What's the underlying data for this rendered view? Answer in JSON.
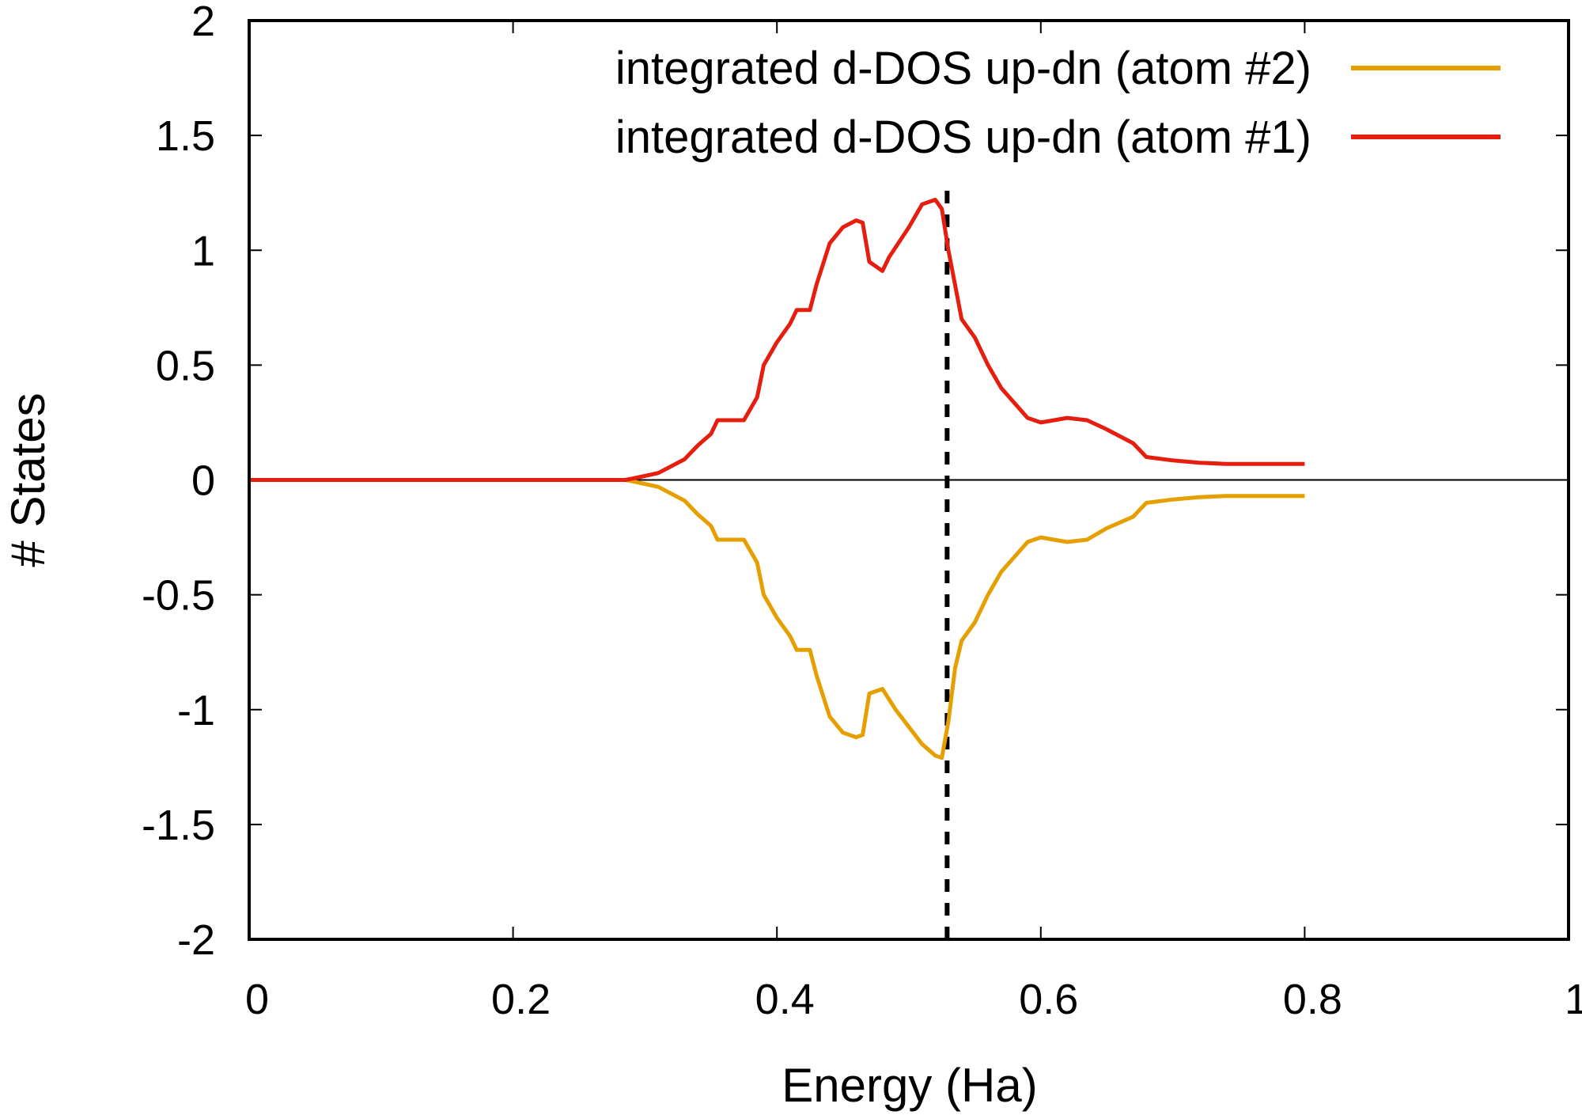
{
  "chart_data": {
    "type": "line",
    "title": "",
    "xlabel": "Energy (Ha)",
    "ylabel": "# States",
    "xlim": [
      0,
      1
    ],
    "ylim": [
      -2,
      2
    ],
    "xticks": [
      "0",
      "0.2",
      "0.4",
      "0.6",
      "0.8",
      "1"
    ],
    "yticks": [
      "2",
      "1.5",
      "1",
      "0.5",
      "0",
      "-0.5",
      "-1",
      "-1.5",
      "-2"
    ],
    "grid": false,
    "legend_position": "top-right",
    "zero_line": true,
    "fermi_level": 0.529,
    "series": [
      {
        "name": "integrated d-DOS up-dn (atom #2)",
        "color": "#e69f00",
        "x": [
          0,
          0.285,
          0.29,
          0.31,
          0.33,
          0.34,
          0.35,
          0.355,
          0.375,
          0.385,
          0.39,
          0.4,
          0.41,
          0.415,
          0.425,
          0.43,
          0.44,
          0.45,
          0.46,
          0.465,
          0.47,
          0.48,
          0.49,
          0.51,
          0.52,
          0.525,
          0.53,
          0.535,
          0.54,
          0.55,
          0.56,
          0.57,
          0.59,
          0.6,
          0.62,
          0.635,
          0.65,
          0.67,
          0.68,
          0.7,
          0.72,
          0.74,
          0.8
        ],
        "y": [
          0,
          0,
          -0.005,
          -0.03,
          -0.09,
          -0.15,
          -0.2,
          -0.26,
          -0.26,
          -0.36,
          -0.5,
          -0.6,
          -0.68,
          -0.74,
          -0.74,
          -0.85,
          -1.03,
          -1.1,
          -1.12,
          -1.11,
          -0.93,
          -0.91,
          -1.0,
          -1.15,
          -1.2,
          -1.21,
          -1.05,
          -0.82,
          -0.7,
          -0.62,
          -0.5,
          -0.4,
          -0.27,
          -0.25,
          -0.27,
          -0.26,
          -0.21,
          -0.16,
          -0.1,
          -0.085,
          -0.075,
          -0.07,
          -0.07
        ]
      },
      {
        "name": "integrated d-DOS up-dn (atom #1)",
        "color": "#e51e10",
        "x": [
          0,
          0.285,
          0.29,
          0.31,
          0.33,
          0.34,
          0.35,
          0.355,
          0.375,
          0.385,
          0.39,
          0.4,
          0.41,
          0.415,
          0.425,
          0.43,
          0.44,
          0.45,
          0.46,
          0.465,
          0.47,
          0.48,
          0.485,
          0.5,
          0.51,
          0.52,
          0.525,
          0.53,
          0.535,
          0.54,
          0.55,
          0.56,
          0.57,
          0.59,
          0.6,
          0.62,
          0.635,
          0.65,
          0.67,
          0.68,
          0.7,
          0.72,
          0.74,
          0.8
        ],
        "y": [
          0,
          0,
          0.005,
          0.03,
          0.09,
          0.15,
          0.2,
          0.26,
          0.26,
          0.36,
          0.5,
          0.6,
          0.68,
          0.74,
          0.74,
          0.85,
          1.03,
          1.1,
          1.13,
          1.12,
          0.95,
          0.91,
          0.97,
          1.1,
          1.2,
          1.22,
          1.18,
          1.0,
          0.85,
          0.7,
          0.62,
          0.5,
          0.4,
          0.27,
          0.25,
          0.27,
          0.26,
          0.22,
          0.16,
          0.1,
          0.085,
          0.075,
          0.07,
          0.07
        ]
      }
    ]
  }
}
